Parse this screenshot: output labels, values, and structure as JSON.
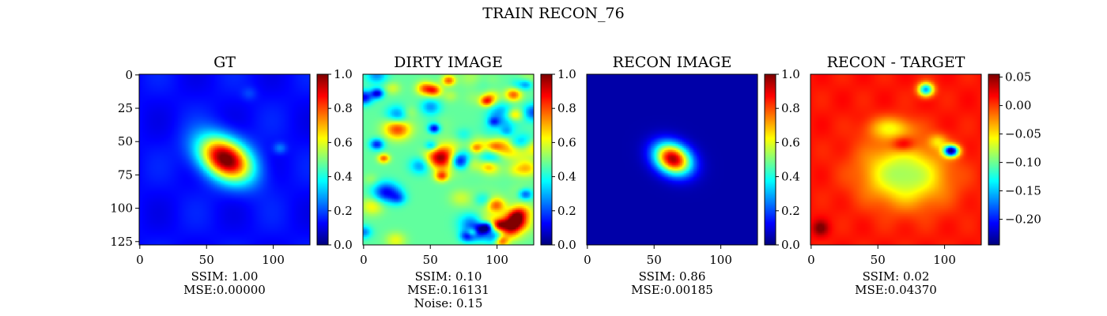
{
  "suptitle": "TRAIN RECON_76",
  "colormap": "jet",
  "axes": {
    "tick_values": [
      0,
      50,
      100
    ],
    "y_tick_values": [
      0,
      25,
      50,
      75,
      100,
      125
    ],
    "x_tick_labels": [
      "0",
      "50",
      "100"
    ],
    "y_tick_labels": [
      "0",
      "25",
      "50",
      "75",
      "100",
      "125"
    ],
    "pixel_range": [
      0,
      127
    ]
  },
  "panels": [
    {
      "title": "GT",
      "image": "ground-truth",
      "colorbar_range": [
        0.0,
        1.0
      ],
      "colorbar_ticks": [
        "0.0",
        "0.2",
        "0.4",
        "0.6",
        "0.8",
        "1.0"
      ],
      "caption": [
        "SSIM: 1.00",
        "MSE:0.00000"
      ]
    },
    {
      "title": "DIRTY IMAGE",
      "image": "dirty",
      "colorbar_range": [
        0.0,
        1.0
      ],
      "colorbar_ticks": [
        "0.0",
        "0.2",
        "0.4",
        "0.6",
        "0.8",
        "1.0"
      ],
      "caption": [
        "SSIM: 0.10",
        "MSE:0.16131",
        "Noise: 0.15"
      ]
    },
    {
      "title": "RECON IMAGE",
      "image": "reconstruction",
      "colorbar_range": [
        0.0,
        1.0
      ],
      "colorbar_ticks": [
        "0.0",
        "0.2",
        "0.4",
        "0.6",
        "0.8",
        "1.0"
      ],
      "caption": [
        "SSIM: 0.86",
        "MSE:0.00185"
      ]
    },
    {
      "title": "RECON - TARGET",
      "image": "residual",
      "colorbar_range": [
        -0.245,
        0.055
      ],
      "colorbar_ticks": [
        "0.05",
        "0.00",
        "−0.05",
        "−0.10",
        "−0.15",
        "−0.20"
      ],
      "colorbar_tick_values": [
        0.05,
        0.0,
        -0.05,
        -0.1,
        -0.15,
        -0.2
      ],
      "caption": [
        "SSIM: 0.02",
        "MSE:0.04370"
      ]
    }
  ],
  "chart_data": [
    {
      "type": "heatmap",
      "title": "GT",
      "x_range": [
        0,
        127
      ],
      "y_range": [
        0,
        127
      ],
      "value_range": [
        0.0,
        1.0
      ],
      "metrics": {
        "SSIM": 1.0,
        "MSE": 0.0
      }
    },
    {
      "type": "heatmap",
      "title": "DIRTY IMAGE",
      "x_range": [
        0,
        127
      ],
      "y_range": [
        0,
        127
      ],
      "value_range": [
        0.0,
        1.0
      ],
      "metrics": {
        "SSIM": 0.1,
        "MSE": 0.16131,
        "Noise": 0.15
      }
    },
    {
      "type": "heatmap",
      "title": "RECON IMAGE",
      "x_range": [
        0,
        127
      ],
      "y_range": [
        0,
        127
      ],
      "value_range": [
        0.0,
        1.0
      ],
      "metrics": {
        "SSIM": 0.86,
        "MSE": 0.00185
      }
    },
    {
      "type": "heatmap",
      "title": "RECON - TARGET",
      "x_range": [
        0,
        127
      ],
      "y_range": [
        0,
        127
      ],
      "value_range": [
        -0.245,
        0.055
      ],
      "metrics": {
        "SSIM": 0.02,
        "MSE": 0.0437
      }
    }
  ]
}
